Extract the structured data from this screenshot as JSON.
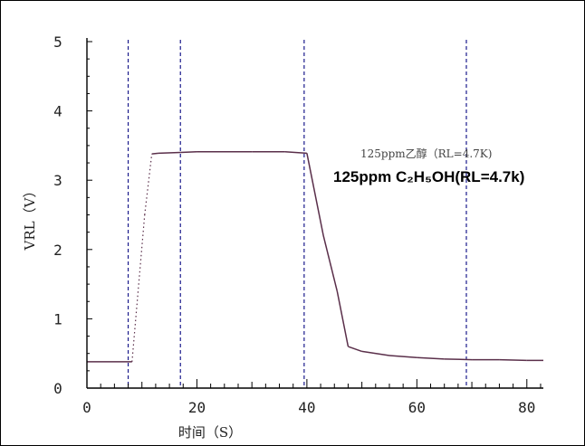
{
  "chart_data": {
    "type": "line",
    "xlabel": "时间（S）",
    "ylabel": "VRL（V）",
    "xlim": [
      0,
      83
    ],
    "ylim": [
      0,
      5
    ],
    "x_ticks": [
      "0",
      "20",
      "40",
      "60",
      "80"
    ],
    "y_ticks": [
      "0",
      "1",
      "2",
      "3",
      "4",
      "5"
    ],
    "grid": false,
    "annotation_cn": "125ppm乙醇（RL=4.7K)",
    "annotation_en": "125ppm C₂H₅OH(RL=4.7k)",
    "vertical_markers": [
      7.5,
      17,
      39.5,
      69
    ],
    "series": [
      {
        "color": "#5a2f4a",
        "x": [
          0,
          8.2,
          10.5,
          11.8,
          13,
          17,
          20,
          30,
          36,
          40,
          43,
          45.5,
          47.5,
          50,
          55,
          60,
          65,
          70,
          75,
          80,
          83
        ],
        "y": [
          0.38,
          0.38,
          2.5,
          3.38,
          3.39,
          3.4,
          3.41,
          3.41,
          3.41,
          3.39,
          2.2,
          1.4,
          0.6,
          0.53,
          0.47,
          0.44,
          0.42,
          0.41,
          0.41,
          0.4,
          0.4
        ]
      }
    ]
  }
}
